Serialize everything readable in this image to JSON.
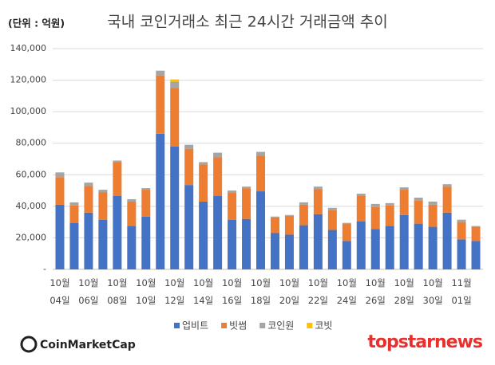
{
  "chart_data": {
    "type": "bar",
    "stacked": true,
    "title": "국내 코인거래소 최근 24시간 거래금액 추이",
    "unit_label": "(단위 : 억원)",
    "source_logo": "CoinMarketCap",
    "watermark": "topstarnews",
    "categories": [
      "10월 04일",
      null,
      "10월 06일",
      null,
      "10월 08일",
      null,
      "10월 10일",
      null,
      "10월 12일",
      null,
      "10월 14일",
      null,
      "10월 16일",
      null,
      "10월 18일",
      null,
      "10월 20일",
      null,
      "10월 22일",
      null,
      "10월 24일",
      null,
      "10월 26일",
      null,
      "10월 28일",
      null,
      "10월 30일",
      null,
      "11월 01일",
      null
    ],
    "series": [
      {
        "name": "업비트",
        "color": "#4472c4",
        "values": [
          41000,
          29500,
          36000,
          31500,
          46500,
          27500,
          33500,
          86000,
          78000,
          53500,
          43000,
          46500,
          31500,
          32000,
          49500,
          23000,
          22000,
          28000,
          35000,
          25000,
          18000,
          30500,
          25500,
          27500,
          34500,
          29000,
          27000,
          36000,
          19000,
          18000
        ]
      },
      {
        "name": "빗썸",
        "color": "#ed7d31",
        "values": [
          17500,
          11000,
          17000,
          17500,
          21500,
          15500,
          17000,
          37000,
          37000,
          23000,
          23500,
          24500,
          17000,
          19500,
          22500,
          10000,
          12000,
          13000,
          16000,
          12500,
          11000,
          16000,
          14000,
          13000,
          16000,
          14500,
          14000,
          16500,
          11000,
          9000
        ]
      },
      {
        "name": "코인원",
        "color": "#a5a5a5",
        "values": [
          3000,
          2000,
          2000,
          1500,
          1000,
          1500,
          1000,
          3000,
          4000,
          2500,
          1500,
          3000,
          1500,
          1000,
          2500,
          500,
          500,
          1500,
          1500,
          1500,
          500,
          1500,
          2000,
          1500,
          1500,
          2000,
          2000,
          1500,
          1500,
          500
        ]
      },
      {
        "name": "코빗",
        "color": "#ffc000",
        "values": [
          0,
          0,
          0,
          0,
          0,
          0,
          0,
          0,
          1500,
          0,
          0,
          0,
          0,
          0,
          0,
          0,
          0,
          0,
          0,
          0,
          0,
          0,
          0,
          0,
          0,
          0,
          0,
          0,
          0,
          0
        ]
      }
    ],
    "ylim": [
      0,
      140000
    ],
    "yticks": [
      {
        "value": 0,
        "label": "-"
      },
      {
        "value": 20000,
        "label": "20,000"
      },
      {
        "value": 40000,
        "label": "40,000"
      },
      {
        "value": 60000,
        "label": "60,000"
      },
      {
        "value": 80000,
        "label": "80,000"
      },
      {
        "value": 100000,
        "label": "100,000"
      },
      {
        "value": 120000,
        "label": "120,000"
      },
      {
        "value": 140000,
        "label": "140,000"
      }
    ],
    "grid": true,
    "legend": "bottom"
  }
}
